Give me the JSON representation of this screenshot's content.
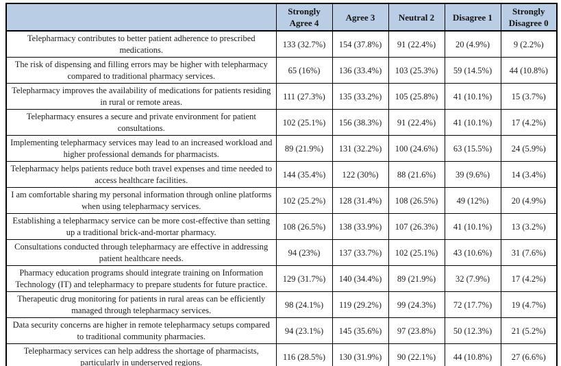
{
  "colors": {
    "header_bg": "#b9cde4",
    "border": "#000000",
    "text": "#1c1c1c"
  },
  "table": {
    "columns": [
      "Strongly Agree 4",
      "Agree 3",
      "Neutral 2",
      "Disagree 1",
      "Strongly Disagree 0"
    ],
    "statement_header": "",
    "rows": [
      {
        "statement": "Telepharmacy contributes to better patient adherence to prescribed medications.",
        "values": [
          "133 (32.7%)",
          "154 (37.8%)",
          "91 (22.4%)",
          "20 (4.9%)",
          "9 (2.2%)"
        ]
      },
      {
        "statement": "The risk of dispensing and filling errors may be higher with telepharmacy compared to traditional pharmacy services.",
        "values": [
          "65 (16%)",
          "136 (33.4%)",
          "103 (25.3%)",
          "59 (14.5%)",
          "44 (10.8%)"
        ]
      },
      {
        "statement": "Telepharmacy improves the availability of medications for patients residing in rural or remote areas.",
        "values": [
          "111 (27.3%)",
          "135 (33.2%)",
          "105 (25.8%)",
          "41 (10.1%)",
          "15 (3.7%)"
        ]
      },
      {
        "statement": "Telepharmacy ensures a secure and private environment for patient consultations.",
        "values": [
          "102 (25.1%)",
          "156 (38.3%)",
          "91 (22.4%)",
          "41 (10.1%)",
          "17 (4.2%)"
        ]
      },
      {
        "statement": "Implementing telepharmacy services may lead to an increased workload and higher professional demands for pharmacists.",
        "values": [
          "89 (21.9%)",
          "131 (32.2%)",
          "100 (24.6%)",
          "63 (15.5%)",
          "24 (5.9%)"
        ]
      },
      {
        "statement": "Telepharmacy helps patients reduce both travel expenses and time needed to access healthcare facilities.",
        "values": [
          "144 (35.4%)",
          "122 (30%)",
          "88 (21.6%)",
          "39 (9.6%)",
          "14 (3.4%)"
        ]
      },
      {
        "statement": "I am comfortable sharing my personal information through online platforms when using telepharmacy services.",
        "values": [
          "102 (25.2%)",
          "128 (31.4%)",
          "108 (26.5%)",
          "49 (12%)",
          "20 (4.9%)"
        ]
      },
      {
        "statement": "Establishing a telepharmacy service can be more cost-effective than setting up a traditional brick-and-mortar pharmacy.",
        "values": [
          "108 (26.5%)",
          "138 (33.9%)",
          "107 (26.3%)",
          "41 (10.1%)",
          "13 (3.2%)"
        ]
      },
      {
        "statement": "Consultations conducted through telepharmacy are effective in addressing patient healthcare needs.",
        "values": [
          "94 (23%)",
          "137 (33.7%)",
          "102 (25.1%)",
          "43 (10.6%)",
          "31 (7.6%)"
        ]
      },
      {
        "statement": "Pharmacy education programs should integrate training on Information Technology (IT) and telepharmacy to prepare students for future practice.",
        "values": [
          "129 (31.7%)",
          "140 (34.4%)",
          "89 (21.9%)",
          "32 (7.9%)",
          "17 (4.2%)"
        ]
      },
      {
        "statement": "Therapeutic drug monitoring for patients in rural areas can be efficiently managed through telepharmacy services.",
        "values": [
          "98 (24.1%)",
          "119 (29.2%)",
          "99 (24.3%)",
          "72 (17.7%)",
          "19 (4.7%)"
        ]
      },
      {
        "statement": "Data security concerns are higher in remote telepharmacy setups compared to traditional community pharmacies.",
        "values": [
          "94 (23.1%)",
          "145 (35.6%)",
          "97 (23.8%)",
          "50 (12.3%)",
          "21 (5.2%)"
        ]
      },
      {
        "statement": "Telepharmacy services can help address the shortage of pharmacists, particularly in underserved regions.",
        "values": [
          "116 (28.5%)",
          "130 (31.9%)",
          "90 (22.1%)",
          "44 (10.8%)",
          "27 (6.6%)"
        ]
      }
    ]
  }
}
